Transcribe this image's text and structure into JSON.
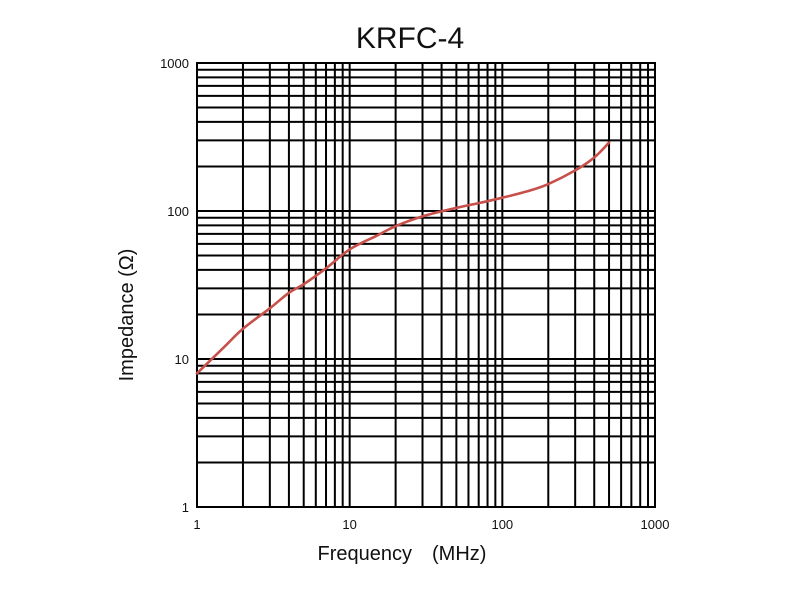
{
  "chart_data": {
    "type": "line",
    "title": "KRFC-4",
    "xlabel": "Frequency　(MHz)",
    "ylabel": "Impedance (Ω)",
    "x_scale": "log",
    "y_scale": "log",
    "xlim": [
      1,
      1000
    ],
    "ylim": [
      1,
      1000
    ],
    "grid": true,
    "x_ticks": [
      {
        "value": 1,
        "label": "1"
      },
      {
        "value": 10,
        "label": "10"
      },
      {
        "value": 100,
        "label": "100"
      },
      {
        "value": 1000,
        "label": "1000"
      }
    ],
    "y_ticks": [
      {
        "value": 1,
        "label": "1"
      },
      {
        "value": 10,
        "label": "10"
      },
      {
        "value": 100,
        "label": "100"
      },
      {
        "value": 1000,
        "label": "1000"
      }
    ],
    "series": [
      {
        "color": "#c8504a",
        "x": [
          1,
          1.5,
          2,
          3,
          4,
          5,
          7,
          10,
          15,
          20,
          30,
          50,
          70,
          100,
          150,
          200,
          300,
          400,
          500
        ],
        "y": [
          8,
          12,
          16,
          22,
          28,
          32,
          41,
          55,
          68,
          79,
          92,
          105,
          113,
          123,
          137,
          152,
          188,
          230,
          290
        ]
      }
    ]
  }
}
